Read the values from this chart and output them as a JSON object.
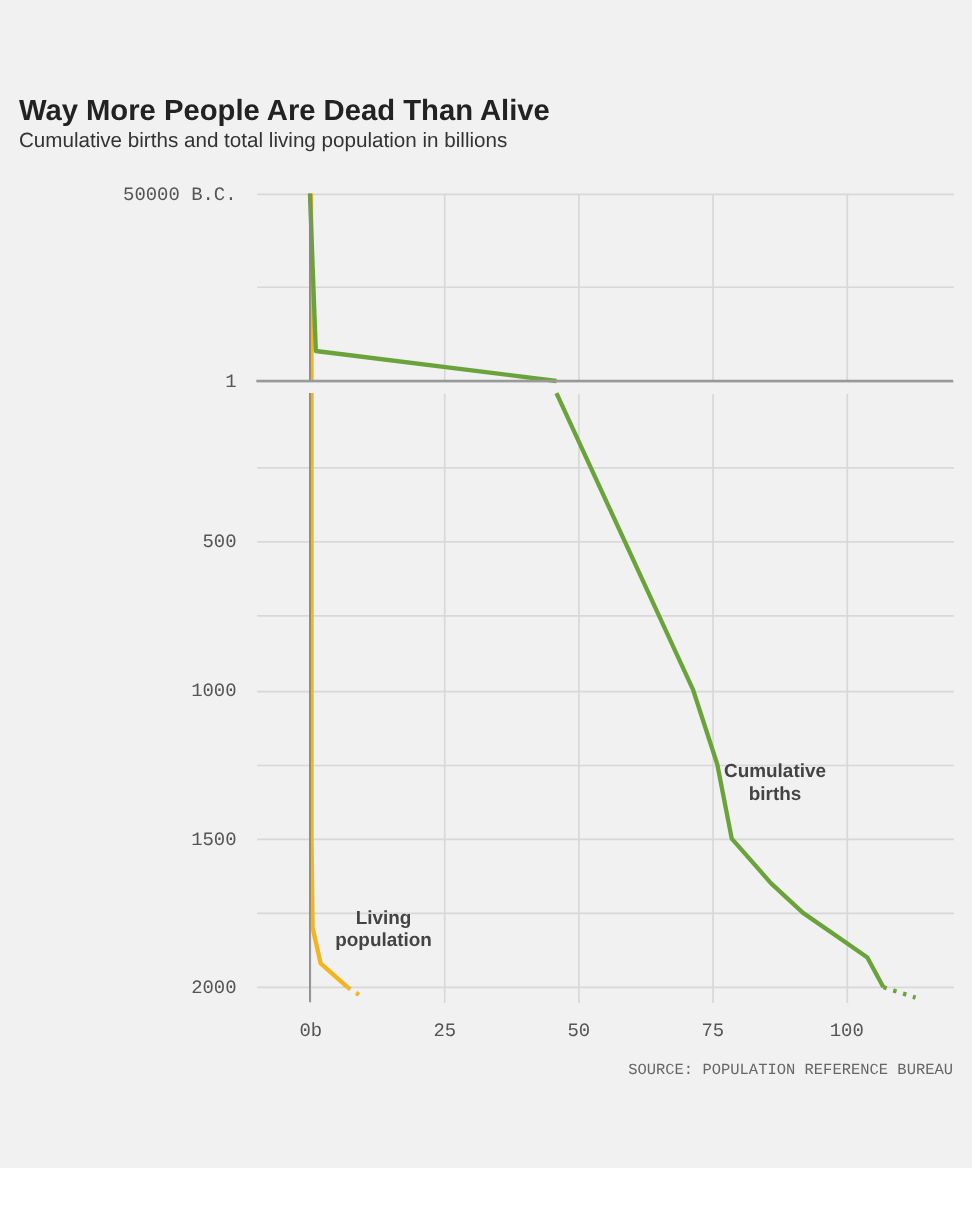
{
  "chart_data": [
    {
      "type": "line",
      "title": "Way More People Are Dead Than Alive",
      "subtitle": "Cumulative births and total living population in billions",
      "xlim": [
        -10,
        120
      ],
      "ylim": [
        1,
        -50000
      ],
      "yticks": [
        {
          "value": -50000,
          "label": "50000 B.C."
        },
        {
          "value": -25000,
          "label": null
        },
        1
      ],
      "xticks": [
        {
          "value": 0,
          "label": null
        },
        {
          "value": 25,
          "label": null
        },
        {
          "value": 50,
          "label": null
        },
        {
          "value": 75,
          "label": null
        },
        {
          "value": 100,
          "label": null
        }
      ],
      "tick_labels": "y",
      "grid": true,
      "ref_lines": [
        {
          "axis": "y",
          "value": 1,
          "color": "#999999"
        }
      ],
      "series": [
        {
          "color": "#f2b51d",
          "x": [
            0.2,
            0.3
          ],
          "values": [
            -50000,
            1
          ]
        },
        {
          "color": "#6aa33a",
          "x": [
            0,
            1.1,
            46
          ],
          "values": [
            -50000,
            -8000,
            1
          ]
        }
      ]
    },
    {
      "type": "line",
      "xlim": [
        -10,
        120
      ],
      "ylim": [
        2050,
        1
      ],
      "yticks": [
        {
          "value": 250,
          "label": null
        },
        500,
        {
          "value": 750,
          "label": null
        },
        1000,
        {
          "value": 1250,
          "label": null
        },
        1500,
        {
          "value": 1750,
          "label": null
        },
        2000
      ],
      "xticks": [
        {
          "value": 0,
          "label": "0b"
        },
        25,
        50,
        75,
        100
      ],
      "grid": true,
      "annotations": [
        "SOURCE: POPULATION REFERENCE BUREAU"
      ],
      "series": [
        {
          "name": "Living population",
          "color": "#f2b51d",
          "x": [
            0.3,
            0.3,
            0.5,
            2,
            7
          ],
          "values": [
            1,
            1500,
            1800,
            1920,
            2000
          ]
        },
        {
          "color": "#f2b51d",
          "line_style": "dotted",
          "x": [
            7,
            9.5
          ],
          "values": [
            2000,
            2030
          ]
        },
        {
          "name": "Cumulative births",
          "color": "#6aa33a",
          "x": [
            46,
            71.5,
            76,
            78.7,
            86,
            92,
            100,
            104,
            107
          ],
          "values": [
            1,
            1000,
            1250,
            1500,
            1650,
            1750,
            1850,
            1900,
            2000
          ]
        },
        {
          "color": "#6aa33a",
          "line_style": "dotted",
          "x": [
            107,
            113
          ],
          "values": [
            2000,
            2035
          ]
        }
      ]
    }
  ]
}
